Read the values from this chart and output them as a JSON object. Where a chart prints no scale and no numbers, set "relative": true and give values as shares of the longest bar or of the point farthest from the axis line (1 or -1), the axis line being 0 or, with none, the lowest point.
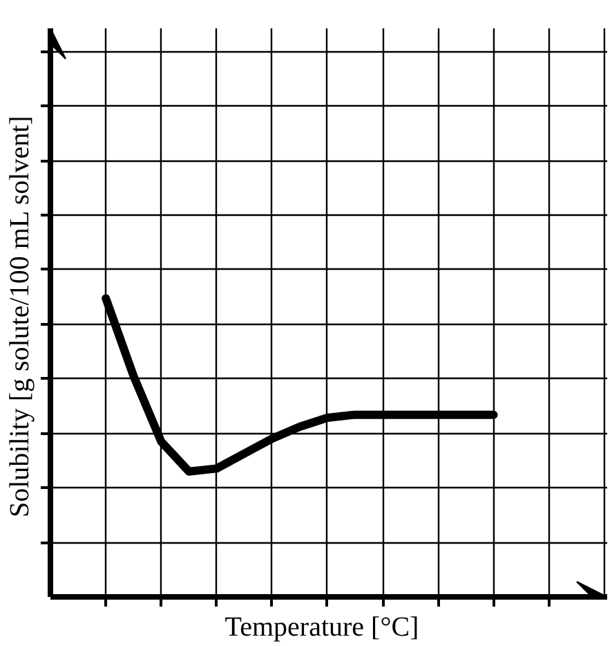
{
  "chart_data": {
    "type": "line",
    "relative": true,
    "xlabel": "Temperature   [°C]",
    "ylabel": "Solubility  [g solute/100 mL solvent]",
    "grid": true,
    "marker": "none",
    "line_style": "solid",
    "categories": [
      null,
      null,
      null,
      null,
      null,
      null,
      null,
      null,
      null,
      null,
      null,
      null,
      null,
      null,
      null
    ],
    "series": [
      {
        "color": "#000000",
        "values": [
          1,
          0.74,
          0.52,
          0.42,
          0.43,
          0.48,
          0.53,
          0.57,
          0.6,
          0.61,
          0.61,
          0.61,
          0.61,
          0.61,
          0.61
        ]
      }
    ]
  }
}
